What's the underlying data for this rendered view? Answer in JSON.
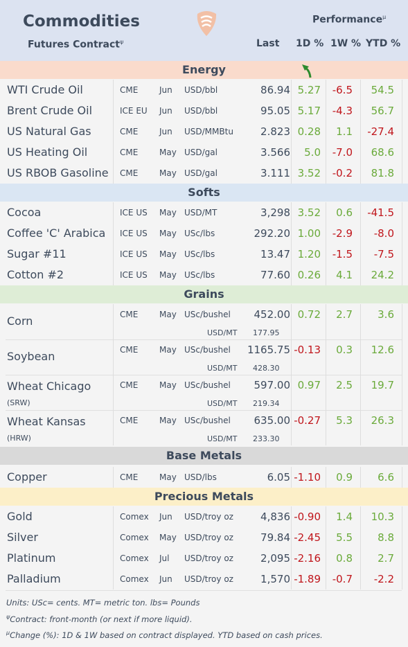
{
  "header": {
    "title": "Commodities",
    "subtitle": "Futures Contract",
    "subtitle_sup": "ψ",
    "performance": "Performance",
    "performance_sup": "μ",
    "cols": {
      "last": "Last",
      "d1": "1D %",
      "w1": "1W %",
      "ytd": "YTD %"
    }
  },
  "sections": {
    "energy": "Energy",
    "softs": "Softs",
    "grains": "Grains",
    "base": "Base Metals",
    "precious": "Precious Metals"
  },
  "energy": [
    {
      "name": "WTI Crude Oil",
      "exch": "CME",
      "mon": "Jun",
      "unit": "USD/bbl",
      "last": "86.94",
      "d1": "5.27",
      "w1": "-6.5",
      "ytd": "54.5"
    },
    {
      "name": "Brent Crude Oil",
      "exch": "ICE EU",
      "mon": "Jun",
      "unit": "USD/bbl",
      "last": "95.05",
      "d1": "5.17",
      "w1": "-4.3",
      "ytd": "56.7"
    },
    {
      "name": "US Natural Gas",
      "exch": "CME",
      "mon": "Jun",
      "unit": "USD/MMBtu",
      "last": "2.823",
      "d1": "0.28",
      "w1": "1.1",
      "ytd": "-27.4"
    },
    {
      "name": "US Heating Oil",
      "exch": "CME",
      "mon": "May",
      "unit": "USD/gal",
      "last": "3.566",
      "d1": "5.0",
      "w1": "-7.0",
      "ytd": "68.6"
    },
    {
      "name": "US RBOB Gasoline",
      "exch": "CME",
      "mon": "May",
      "unit": "USD/gal",
      "last": "3.111",
      "d1": "3.52",
      "w1": "-0.2",
      "ytd": "81.8"
    }
  ],
  "softs": [
    {
      "name": "Cocoa",
      "exch": "ICE US",
      "mon": "May",
      "unit": "USD/MT",
      "last": "3,298",
      "d1": "3.52",
      "w1": "0.6",
      "ytd": "-41.5"
    },
    {
      "name": "Coffee 'C' Arabica",
      "exch": "ICE US",
      "mon": "May",
      "unit": "USc/lbs",
      "last": "292.20",
      "d1": "1.00",
      "w1": "-2.9",
      "ytd": "-8.0"
    },
    {
      "name": "Sugar #11",
      "exch": "ICE US",
      "mon": "May",
      "unit": "USc/lbs",
      "last": "13.47",
      "d1": "1.20",
      "w1": "-1.5",
      "ytd": "-7.5"
    },
    {
      "name": "Cotton #2",
      "exch": "ICE US",
      "mon": "May",
      "unit": "USc/lbs",
      "last": "77.60",
      "d1": "0.26",
      "w1": "4.1",
      "ytd": "24.2"
    }
  ],
  "grains": [
    {
      "name": "Corn",
      "note": "",
      "exch": "CME",
      "mon": "May",
      "unit": "USc/bushel",
      "last": "452.00",
      "unit2": "USD/MT",
      "last2": "177.95",
      "d1": "0.72",
      "w1": "2.7",
      "ytd": "3.6"
    },
    {
      "name": "Soybean",
      "note": "",
      "exch": "CME",
      "mon": "May",
      "unit": "USc/bushel",
      "last": "1165.75",
      "unit2": "USD/MT",
      "last2": "428.30",
      "d1": "-0.13",
      "w1": "0.3",
      "ytd": "12.6"
    },
    {
      "name": "Wheat Chicago",
      "note": "(SRW)",
      "exch": "CME",
      "mon": "May",
      "unit": "USc/bushel",
      "last": "597.00",
      "unit2": "USD/MT",
      "last2": "219.34",
      "d1": "0.97",
      "w1": "2.5",
      "ytd": "19.7"
    },
    {
      "name": "Wheat Kansas",
      "note": "(HRW)",
      "exch": "CME",
      "mon": "May",
      "unit": "USc/bushel",
      "last": "635.00",
      "unit2": "USD/MT",
      "last2": "233.30",
      "d1": "-0.27",
      "w1": "5.3",
      "ytd": "26.3"
    }
  ],
  "base": [
    {
      "name": "Copper",
      "exch": "CME",
      "mon": "May",
      "unit": "USD/lbs",
      "last": "6.05",
      "d1": "-1.10",
      "w1": "0.9",
      "ytd": "6.6"
    }
  ],
  "precious": [
    {
      "name": "Gold",
      "exch": "Comex",
      "mon": "Jun",
      "unit": "USD/troy oz",
      "last": "4,836",
      "d1": "-0.90",
      "w1": "1.4",
      "ytd": "10.3"
    },
    {
      "name": "Silver",
      "exch": "Comex",
      "mon": "May",
      "unit": "USD/troy oz",
      "last": "79.84",
      "d1": "-2.45",
      "w1": "5.5",
      "ytd": "8.8"
    },
    {
      "name": "Platinum",
      "exch": "Comex",
      "mon": "Jul",
      "unit": "USD/troy oz",
      "last": "2,095",
      "d1": "-2.16",
      "w1": "0.8",
      "ytd": "2.7"
    },
    {
      "name": "Palladium",
      "exch": "Comex",
      "mon": "Jun",
      "unit": "USD/troy oz",
      "last": "1,570",
      "d1": "-1.89",
      "w1": "-0.7",
      "ytd": "-2.2"
    }
  ],
  "footnotes": {
    "units": "Units: USc= cents.  MT= metric ton.  lbs= Pounds",
    "contract_sym": "ψ",
    "contract": "Contract: front-month (or next if more liquid).",
    "change_sym": "μ",
    "change": "Change (%): 1D & 1W based on contract displayed. YTD based on cash prices."
  },
  "colors": {
    "header_bg": "#dce3f1",
    "energy_bg": "#fadbcc",
    "softs_bg": "#dae6f3",
    "grains_bg": "#deedd6",
    "base_bg": "#d9d9d9",
    "precious_bg": "#fcefc8",
    "positive": "#6aaa3a",
    "negative": "#c0151b"
  },
  "icons": {
    "logo": "feather-logo-icon",
    "indicator": "green-curved-arrow-icon"
  }
}
